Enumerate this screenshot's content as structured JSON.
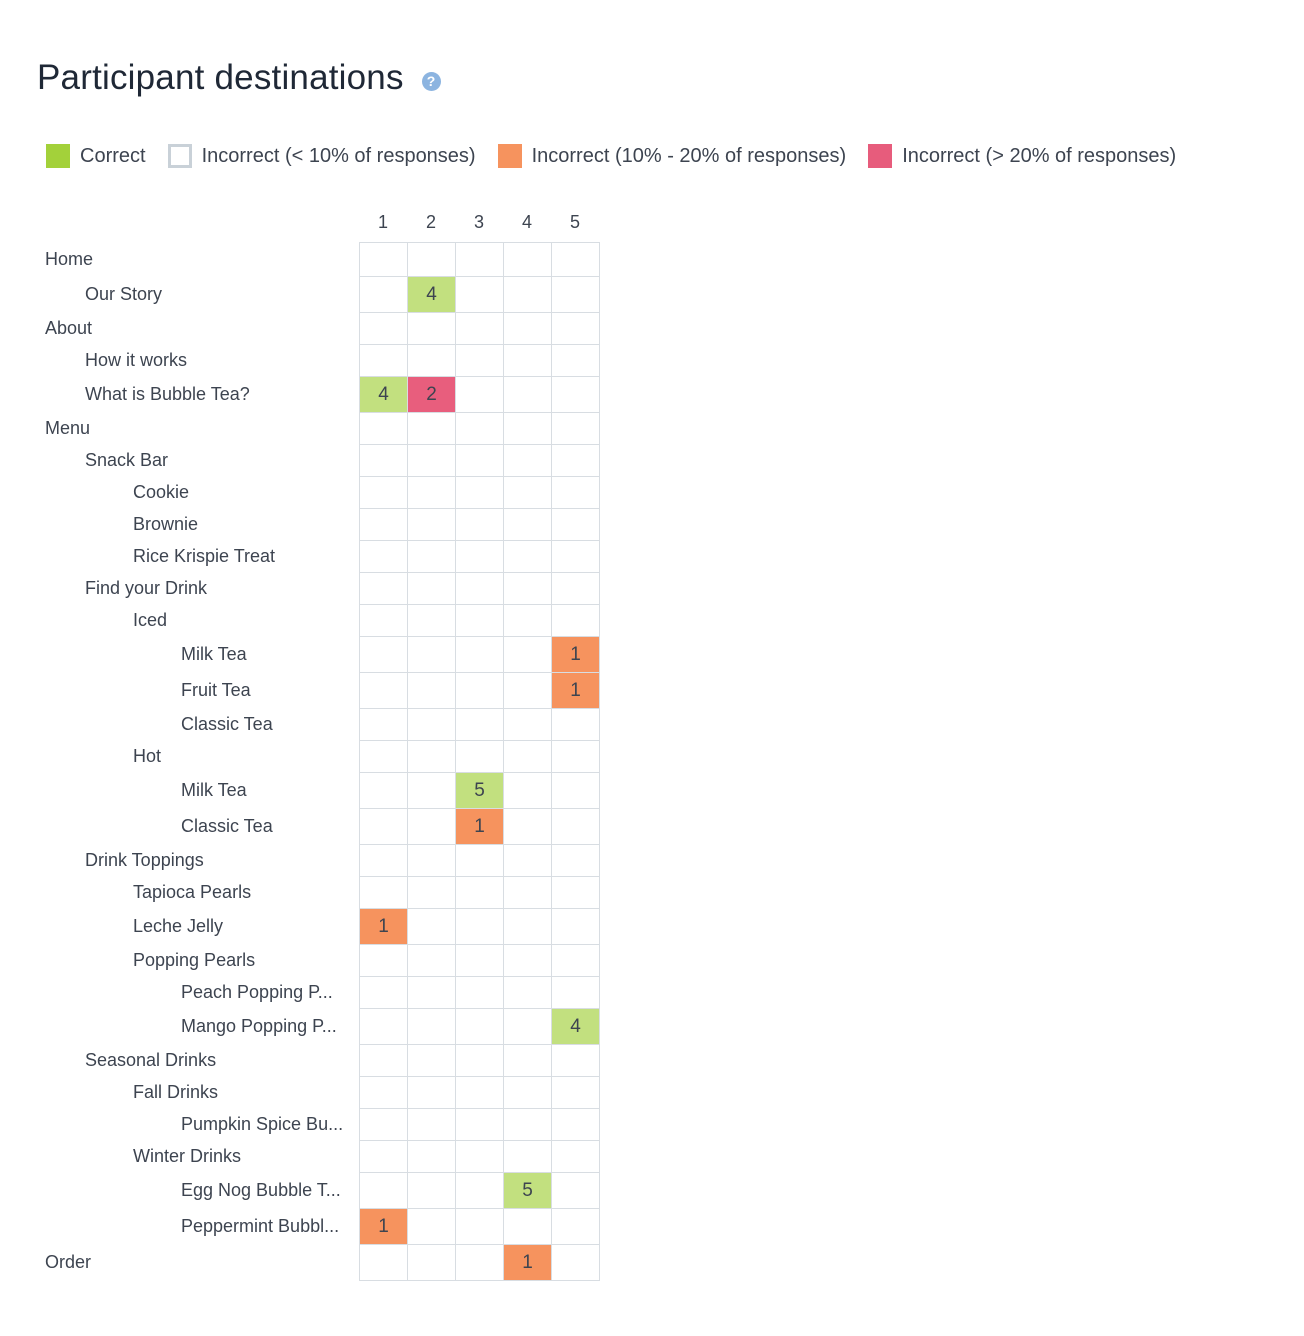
{
  "header": {
    "title": "Participant destinations",
    "help_icon": "question-circle-icon"
  },
  "legend": [
    {
      "label": "Correct",
      "color": "#a3d13a",
      "border": "#a3d13a"
    },
    {
      "label": "Incorrect (< 10% of responses)",
      "color": "#ffffff",
      "border": "#c9d1d8"
    },
    {
      "label": "Incorrect (10% - 20% of responses)",
      "color": "#f6935e",
      "border": "#f6935e"
    },
    {
      "label": "Incorrect (> 20% of responses)",
      "color": "#e75c7c",
      "border": "#e75c7c"
    }
  ],
  "status_colors": {
    "correct": "#c2e07f",
    "incorrect_mid": "#f6935e",
    "incorrect_high": "#e85e7d",
    "empty": "#ffffff"
  },
  "columns": [
    "1",
    "2",
    "3",
    "4",
    "5"
  ],
  "rows": [
    {
      "label": "Home",
      "level": 0,
      "cells": {}
    },
    {
      "label": "Our Story",
      "level": 1,
      "cells": {
        "2": {
          "value": "4",
          "status": "correct"
        }
      }
    },
    {
      "label": "About",
      "level": 0,
      "cells": {}
    },
    {
      "label": "How it works",
      "level": 1,
      "cells": {}
    },
    {
      "label": "What is Bubble Tea?",
      "level": 1,
      "cells": {
        "1": {
          "value": "4",
          "status": "correct"
        },
        "2": {
          "value": "2",
          "status": "incorrect_high"
        }
      }
    },
    {
      "label": "Menu",
      "level": 0,
      "cells": {}
    },
    {
      "label": "Snack Bar",
      "level": 1,
      "cells": {}
    },
    {
      "label": "Cookie",
      "level": 2,
      "cells": {}
    },
    {
      "label": "Brownie",
      "level": 2,
      "cells": {}
    },
    {
      "label": "Rice Krispie Treat",
      "level": 2,
      "cells": {}
    },
    {
      "label": "Find your Drink",
      "level": 1,
      "cells": {}
    },
    {
      "label": "Iced",
      "level": 2,
      "cells": {}
    },
    {
      "label": "Milk Tea",
      "level": 3,
      "cells": {
        "5": {
          "value": "1",
          "status": "incorrect_mid"
        }
      }
    },
    {
      "label": "Fruit Tea",
      "level": 3,
      "cells": {
        "5": {
          "value": "1",
          "status": "incorrect_mid"
        }
      }
    },
    {
      "label": "Classic Tea",
      "level": 3,
      "cells": {}
    },
    {
      "label": "Hot",
      "level": 2,
      "cells": {}
    },
    {
      "label": "Milk Tea",
      "level": 3,
      "cells": {
        "3": {
          "value": "5",
          "status": "correct"
        }
      }
    },
    {
      "label": "Classic Tea",
      "level": 3,
      "cells": {
        "3": {
          "value": "1",
          "status": "incorrect_mid"
        }
      }
    },
    {
      "label": "Drink Toppings",
      "level": 1,
      "cells": {}
    },
    {
      "label": "Tapioca Pearls",
      "level": 2,
      "cells": {}
    },
    {
      "label": "Leche Jelly",
      "level": 2,
      "cells": {
        "1": {
          "value": "1",
          "status": "incorrect_mid"
        }
      }
    },
    {
      "label": "Popping Pearls",
      "level": 2,
      "cells": {}
    },
    {
      "label": "Peach Popping P...",
      "level": 3,
      "cells": {}
    },
    {
      "label": "Mango Popping P...",
      "level": 3,
      "cells": {
        "5": {
          "value": "4",
          "status": "correct"
        }
      }
    },
    {
      "label": "Seasonal Drinks",
      "level": 1,
      "cells": {}
    },
    {
      "label": "Fall Drinks",
      "level": 2,
      "cells": {}
    },
    {
      "label": "Pumpkin Spice Bu...",
      "level": 3,
      "cells": {}
    },
    {
      "label": "Winter Drinks",
      "level": 2,
      "cells": {}
    },
    {
      "label": "Egg Nog Bubble T...",
      "level": 3,
      "cells": {
        "4": {
          "value": "5",
          "status": "correct"
        }
      }
    },
    {
      "label": "Peppermint Bubbl...",
      "level": 3,
      "cells": {
        "1": {
          "value": "1",
          "status": "incorrect_mid"
        }
      }
    },
    {
      "label": "Order",
      "level": 0,
      "cells": {
        "4": {
          "value": "1",
          "status": "incorrect_mid"
        }
      }
    }
  ]
}
